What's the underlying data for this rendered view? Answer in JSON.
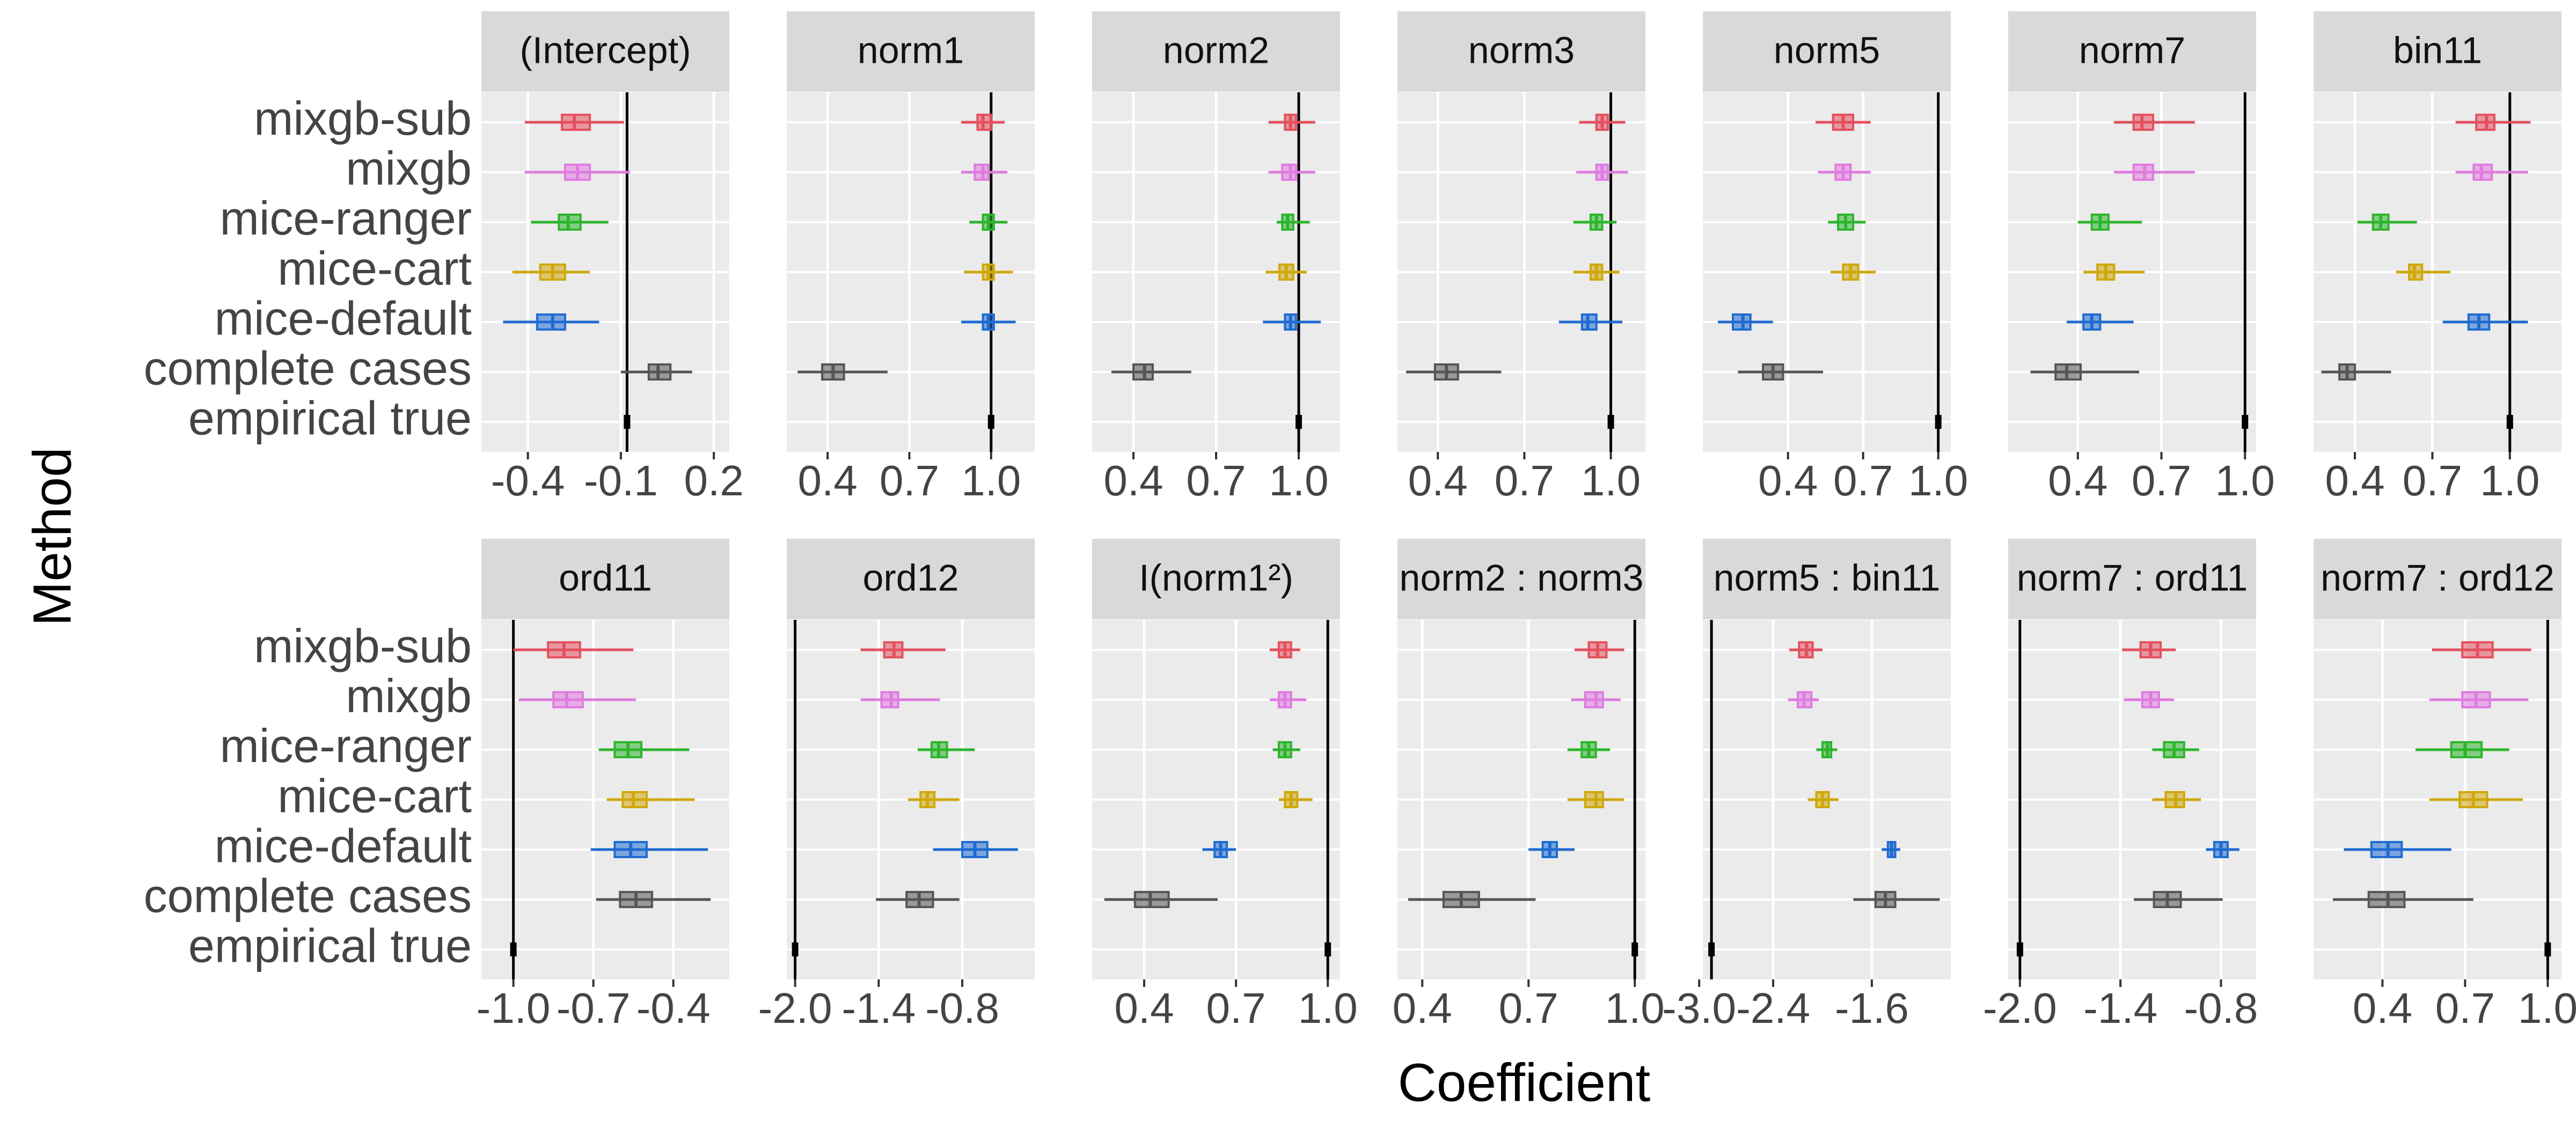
{
  "chart_data": {
    "type": "interval-facets",
    "x_label": "Coefficient",
    "y_label": "Method",
    "categories": [
      "mixgb-sub",
      "mixgb",
      "mice-ranger",
      "mice-cart",
      "mice-default",
      "complete cases",
      "empirical true"
    ],
    "colors": [
      "#e4505e",
      "#e07be0",
      "#2db52d",
      "#cfa80a",
      "#1f6bd1",
      "#555555",
      "#000000"
    ],
    "grid": true,
    "panels": [
      {
        "title": "(Intercept)",
        "xlim": [
          -0.55,
          0.25
        ],
        "xticks": [
          -0.4,
          -0.1,
          0.2
        ],
        "true_value": -0.08,
        "boxes": [
          [
            -0.41,
            -0.29,
            -0.25,
            -0.2,
            -0.09
          ],
          [
            -0.41,
            -0.28,
            -0.24,
            -0.2,
            -0.07
          ],
          [
            -0.39,
            -0.3,
            -0.27,
            -0.23,
            -0.14
          ],
          [
            -0.45,
            -0.36,
            -0.32,
            -0.28,
            -0.2
          ],
          [
            -0.48,
            -0.37,
            -0.32,
            -0.28,
            -0.17
          ],
          [
            -0.1,
            -0.01,
            0.02,
            0.06,
            0.13
          ]
        ]
      },
      {
        "title": "norm1",
        "xlim": [
          0.25,
          1.16
        ],
        "xticks": [
          0.4,
          0.7,
          {
            "value": 1,
            "label": "1.0"
          }
        ],
        "true_value": 1,
        "boxes": [
          [
            0.89,
            0.95,
            0.97,
            1.0,
            1.05
          ],
          [
            0.89,
            0.94,
            0.97,
            0.99,
            1.06
          ],
          [
            0.92,
            0.97,
            0.99,
            1.01,
            1.06
          ],
          [
            0.9,
            0.97,
            0.99,
            1.01,
            1.08
          ],
          [
            0.89,
            0.97,
            0.99,
            1.01,
            1.09
          ],
          [
            0.29,
            0.38,
            0.42,
            0.46,
            0.62
          ]
        ]
      },
      {
        "title": "norm2",
        "xlim": [
          0.25,
          1.15
        ],
        "xticks": [
          0.4,
          0.7,
          {
            "value": 1,
            "label": "1.0"
          }
        ],
        "true_value": 1,
        "boxes": [
          [
            0.89,
            0.95,
            0.97,
            0.99,
            1.06
          ],
          [
            0.89,
            0.94,
            0.97,
            0.99,
            1.06
          ],
          [
            0.92,
            0.94,
            0.96,
            0.98,
            1.04
          ],
          [
            0.88,
            0.93,
            0.955,
            0.98,
            1.03
          ],
          [
            0.87,
            0.95,
            0.97,
            0.99,
            1.08
          ],
          [
            0.32,
            0.4,
            0.44,
            0.47,
            0.61
          ]
        ]
      },
      {
        "title": "norm3",
        "xlim": [
          0.26,
          1.12
        ],
        "xticks": [
          0.4,
          0.7,
          {
            "value": 1,
            "label": "1.0"
          }
        ],
        "true_value": 1,
        "boxes": [
          [
            0.89,
            0.95,
            0.97,
            0.99,
            1.05
          ],
          [
            0.88,
            0.95,
            0.97,
            0.99,
            1.06
          ],
          [
            0.87,
            0.93,
            0.95,
            0.97,
            1.02
          ],
          [
            0.87,
            0.93,
            0.95,
            0.97,
            1.03
          ],
          [
            0.82,
            0.9,
            0.92,
            0.95,
            1.04
          ],
          [
            0.29,
            0.39,
            0.43,
            0.47,
            0.62
          ]
        ]
      },
      {
        "title": "norm5",
        "xlim": [
          0.06,
          1.05
        ],
        "xticks": [
          0.4,
          0.7,
          {
            "value": 1,
            "label": "1.0"
          }
        ],
        "true_value": 1,
        "boxes": [
          [
            0.51,
            0.58,
            0.62,
            0.66,
            0.73
          ],
          [
            0.52,
            0.59,
            0.62,
            0.65,
            0.73
          ],
          [
            0.56,
            0.6,
            0.63,
            0.66,
            0.71
          ],
          [
            0.57,
            0.62,
            0.65,
            0.68,
            0.75
          ],
          [
            0.12,
            0.18,
            0.22,
            0.25,
            0.34
          ],
          [
            0.2,
            0.3,
            0.34,
            0.38,
            0.54
          ]
        ]
      },
      {
        "title": "norm7",
        "xlim": [
          0.15,
          1.04
        ],
        "xticks": [
          0.4,
          0.7,
          {
            "value": 1,
            "label": "1.0"
          }
        ],
        "true_value": 1,
        "boxes": [
          [
            0.53,
            0.6,
            0.63,
            0.67,
            0.82
          ],
          [
            0.53,
            0.6,
            0.64,
            0.67,
            0.82
          ],
          [
            0.4,
            0.45,
            0.48,
            0.51,
            0.63
          ],
          [
            0.42,
            0.47,
            0.5,
            0.53,
            0.64
          ],
          [
            0.36,
            0.42,
            0.45,
            0.48,
            0.6
          ],
          [
            0.23,
            0.32,
            0.36,
            0.41,
            0.62
          ]
        ]
      },
      {
        "title": "bin11",
        "xlim": [
          0.24,
          1.2
        ],
        "xticks": [
          0.4,
          0.7,
          {
            "value": 1,
            "label": "1.0"
          }
        ],
        "true_value": 1,
        "boxes": [
          [
            0.79,
            0.87,
            0.91,
            0.94,
            1.08
          ],
          [
            0.79,
            0.86,
            0.89,
            0.93,
            1.07
          ],
          [
            0.41,
            0.47,
            0.5,
            0.53,
            0.64
          ],
          [
            0.56,
            0.61,
            0.63,
            0.66,
            0.77
          ],
          [
            0.74,
            0.84,
            0.88,
            0.92,
            1.07
          ],
          [
            0.27,
            0.34,
            0.37,
            0.4,
            0.54
          ]
        ]
      },
      {
        "title": "ord11",
        "xlim": [
          -1.12,
          -0.19
        ],
        "xticks": [
          {
            "value": -1,
            "label": "-1.0"
          },
          -0.7,
          -0.4
        ],
        "true_value": -1,
        "boxes": [
          [
            -1.0,
            -0.87,
            -0.81,
            -0.75,
            -0.55
          ],
          [
            -0.98,
            -0.85,
            -0.8,
            -0.74,
            -0.54
          ],
          [
            -0.68,
            -0.62,
            -0.57,
            -0.52,
            -0.34
          ],
          [
            -0.65,
            -0.59,
            -0.55,
            -0.5,
            -0.32
          ],
          [
            -0.71,
            -0.62,
            -0.56,
            -0.5,
            -0.27
          ],
          [
            -0.69,
            -0.6,
            -0.54,
            -0.48,
            -0.26
          ]
        ]
      },
      {
        "title": "ord12",
        "xlim": [
          -2.06,
          -0.28
        ],
        "xticks": [
          {
            "value": -2,
            "label": "-2.0"
          },
          -1.4,
          -0.8
        ],
        "true_value": -2,
        "boxes": [
          [
            -1.53,
            -1.36,
            -1.29,
            -1.23,
            -0.92
          ],
          [
            -1.53,
            -1.38,
            -1.31,
            -1.26,
            -0.96
          ],
          [
            -1.12,
            -1.02,
            -0.97,
            -0.91,
            -0.71
          ],
          [
            -1.19,
            -1.1,
            -1.05,
            -1.0,
            -0.82
          ],
          [
            -1.01,
            -0.8,
            -0.71,
            -0.62,
            -0.4
          ],
          [
            -1.42,
            -1.2,
            -1.11,
            -1.01,
            -0.82
          ]
        ]
      },
      {
        "title": "I(norm1²)",
        "xlim": [
          0.23,
          1.04
        ],
        "xticks": [
          0.4,
          0.7,
          {
            "value": 1,
            "label": "1.0"
          }
        ],
        "true_value": 1,
        "boxes": [
          [
            0.81,
            0.84,
            0.86,
            0.88,
            0.91
          ],
          [
            0.81,
            0.84,
            0.86,
            0.88,
            0.93
          ],
          [
            0.82,
            0.84,
            0.86,
            0.88,
            0.91
          ],
          [
            0.84,
            0.86,
            0.88,
            0.9,
            0.95
          ],
          [
            0.59,
            0.63,
            0.65,
            0.67,
            0.7
          ],
          [
            0.27,
            0.37,
            0.42,
            0.48,
            0.64
          ]
        ]
      },
      {
        "title": "norm2 : norm3",
        "xlim": [
          0.33,
          1.03
        ],
        "xticks": [
          0.4,
          0.7,
          {
            "value": 1,
            "label": "1.0"
          }
        ],
        "true_value": 1,
        "boxes": [
          [
            0.83,
            0.87,
            0.895,
            0.92,
            0.97
          ],
          [
            0.82,
            0.86,
            0.89,
            0.91,
            0.96
          ],
          [
            0.81,
            0.85,
            0.87,
            0.89,
            0.93
          ],
          [
            0.81,
            0.86,
            0.89,
            0.91,
            0.97
          ],
          [
            0.7,
            0.74,
            0.76,
            0.78,
            0.83
          ],
          [
            0.36,
            0.46,
            0.51,
            0.56,
            0.72
          ]
        ]
      },
      {
        "title": "norm5 : bin11",
        "xlim": [
          -2.97,
          -0.96
        ],
        "xticks": [
          {
            "value": -3,
            "label": "-3.0"
          },
          -2.4,
          -1.6
        ],
        "true_value": -2.9,
        "boxes": [
          [
            -2.27,
            -2.19,
            -2.13,
            -2.08,
            -2.0
          ],
          [
            -2.28,
            -2.2,
            -2.15,
            -2.09,
            -2.03
          ],
          [
            -2.05,
            -2.0,
            -1.96,
            -1.93,
            -1.88
          ],
          [
            -2.12,
            -2.05,
            -2.0,
            -1.95,
            -1.87
          ],
          [
            -1.52,
            -1.47,
            -1.44,
            -1.41,
            -1.37
          ],
          [
            -1.75,
            -1.57,
            -1.49,
            -1.41,
            -1.05
          ]
        ]
      },
      {
        "title": "norm7 : ord11",
        "xlim": [
          -2.07,
          -0.59
        ],
        "xticks": [
          {
            "value": -2,
            "label": "-2.0"
          },
          -1.4,
          -0.8
        ],
        "true_value": -2,
        "boxes": [
          [
            -1.39,
            -1.28,
            -1.22,
            -1.16,
            -1.07
          ],
          [
            -1.38,
            -1.27,
            -1.22,
            -1.17,
            -1.08
          ],
          [
            -1.21,
            -1.14,
            -1.08,
            -1.02,
            -0.93
          ],
          [
            -1.21,
            -1.13,
            -1.07,
            -1.02,
            -0.92
          ],
          [
            -0.89,
            -0.84,
            -0.8,
            -0.76,
            -0.69
          ],
          [
            -1.32,
            -1.2,
            -1.12,
            -1.04,
            -0.79
          ]
        ]
      },
      {
        "title": "norm7 : ord12",
        "xlim": [
          0.15,
          1.05
        ],
        "xticks": [
          0.4,
          0.7,
          {
            "value": 1,
            "label": "1.0"
          }
        ],
        "true_value": 1,
        "boxes": [
          [
            0.58,
            0.69,
            0.745,
            0.8,
            0.94
          ],
          [
            0.57,
            0.69,
            0.74,
            0.79,
            0.93
          ],
          [
            0.52,
            0.65,
            0.7,
            0.76,
            0.86
          ],
          [
            0.57,
            0.68,
            0.73,
            0.78,
            0.91
          ],
          [
            0.26,
            0.36,
            0.42,
            0.47,
            0.65
          ],
          [
            0.22,
            0.35,
            0.42,
            0.48,
            0.73
          ]
        ]
      }
    ]
  }
}
